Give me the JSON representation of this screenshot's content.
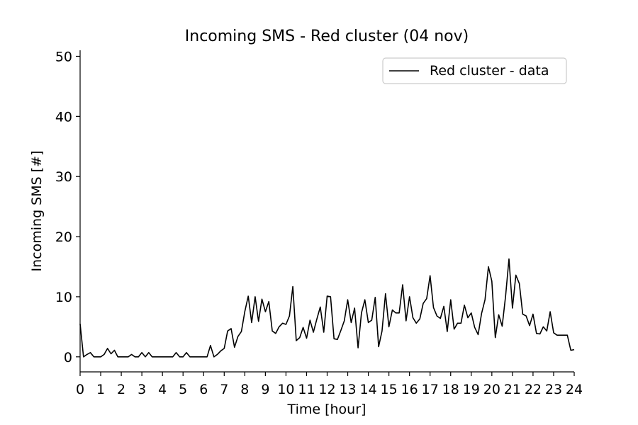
{
  "chart_data": {
    "type": "line",
    "title": "Incoming SMS - Red cluster (04 nov)",
    "xlabel": "Time [hour]",
    "ylabel": "Incoming SMS [#]",
    "xlim": [
      0,
      24
    ],
    "ylim": [
      -2.5,
      51
    ],
    "x_ticks": [
      "0",
      "1",
      "2",
      "3",
      "4",
      "5",
      "6",
      "7",
      "8",
      "9",
      "10",
      "11",
      "12",
      "13",
      "14",
      "15",
      "16",
      "17",
      "18",
      "19",
      "20",
      "21",
      "22",
      "23",
      "24"
    ],
    "y_ticks": [
      "0",
      "10",
      "20",
      "30",
      "40",
      "50"
    ],
    "grid": false,
    "legend_position": "top-right",
    "line_color": "#000000",
    "series": [
      {
        "name": "Red cluster - data",
        "x": [
          0,
          0.1667,
          0.3333,
          0.5,
          0.6667,
          0.8333,
          1,
          1.1667,
          1.3333,
          1.5,
          1.6667,
          1.8333,
          2,
          2.1667,
          2.3333,
          2.5,
          2.6667,
          2.8333,
          3,
          3.1667,
          3.3333,
          3.5,
          3.6667,
          3.8333,
          4,
          4.1667,
          4.3333,
          4.5,
          4.6667,
          4.8333,
          5,
          5.1667,
          5.3333,
          5.5,
          5.6667,
          5.8333,
          6,
          6.1667,
          6.3333,
          6.5,
          6.6667,
          6.8333,
          7,
          7.1667,
          7.3333,
          7.5,
          7.6667,
          7.8333,
          8,
          8.1667,
          8.3333,
          8.5,
          8.6667,
          8.8333,
          9,
          9.1667,
          9.3333,
          9.5,
          9.6667,
          9.8333,
          10,
          10.1667,
          10.3333,
          10.5,
          10.6667,
          10.8333,
          11,
          11.1667,
          11.3333,
          11.5,
          11.6667,
          11.8333,
          12,
          12.1667,
          12.3333,
          12.5,
          12.6667,
          12.8333,
          13,
          13.1667,
          13.3333,
          13.5,
          13.6667,
          13.8333,
          14,
          14.1667,
          14.3333,
          14.5,
          14.6667,
          14.8333,
          15,
          15.1667,
          15.3333,
          15.5,
          15.6667,
          15.8333,
          16,
          16.1667,
          16.3333,
          16.5,
          16.6667,
          16.8333,
          17,
          17.1667,
          17.3333,
          17.5,
          17.6667,
          17.8333,
          18,
          18.1667,
          18.3333,
          18.5,
          18.6667,
          18.8333,
          19,
          19.1667,
          19.3333,
          19.5,
          19.6667,
          19.8333,
          20,
          20.1667,
          20.3333,
          20.5,
          20.6667,
          20.8333,
          21,
          21.1667,
          21.3333,
          21.5,
          21.6667,
          21.8333,
          22,
          22.1667,
          22.3333,
          22.5,
          22.6667,
          22.8333,
          23,
          23.1667,
          23.3333,
          23.5,
          23.6667,
          23.8333,
          24
        ],
        "y": [
          5.5,
          0,
          0.4,
          0.7,
          0,
          0,
          0,
          0.4,
          1.4,
          0.5,
          1.1,
          0,
          0,
          0,
          0,
          0.4,
          0,
          0,
          0.7,
          0,
          0.7,
          0,
          0,
          0,
          0,
          0,
          0,
          0,
          0.7,
          0,
          0,
          0.7,
          0,
          0,
          0,
          0,
          0,
          0,
          1.9,
          0,
          0.4,
          1,
          1.4,
          4.3,
          4.7,
          1.6,
          3.4,
          4.2,
          7.5,
          10.1,
          5.7,
          10,
          5.9,
          9.6,
          7.5,
          9.2,
          4.3,
          3.9,
          5,
          5.6,
          5.4,
          6.8,
          11.7,
          2.7,
          3.2,
          4.9,
          3.1,
          6.1,
          4.1,
          6.3,
          8.3,
          4.1,
          10.1,
          10,
          3,
          2.9,
          4.4,
          6,
          9.5,
          5.7,
          8.1,
          1.5,
          7.3,
          9.5,
          5.7,
          6.1,
          9.9,
          1.7,
          4.3,
          10.5,
          5,
          7.8,
          7.3,
          7.3,
          12,
          6,
          10,
          6.5,
          5.6,
          6.3,
          8.9,
          9.7,
          13.5,
          8.2,
          6.8,
          6.4,
          8.4,
          4.2,
          9.5,
          4.6,
          5.6,
          5.6,
          8.6,
          6.5,
          7.3,
          4.9,
          3.7,
          7.2,
          9.5,
          15,
          12.6,
          3.2,
          7,
          5.1,
          10.1,
          16.3,
          8.1,
          13.6,
          12.2,
          7.1,
          6.8,
          5.2,
          7.1,
          3.9,
          3.8,
          5,
          4.3,
          7.5,
          4,
          3.6,
          3.6,
          3.6,
          3.6,
          1.1,
          1.2
        ]
      }
    ]
  }
}
